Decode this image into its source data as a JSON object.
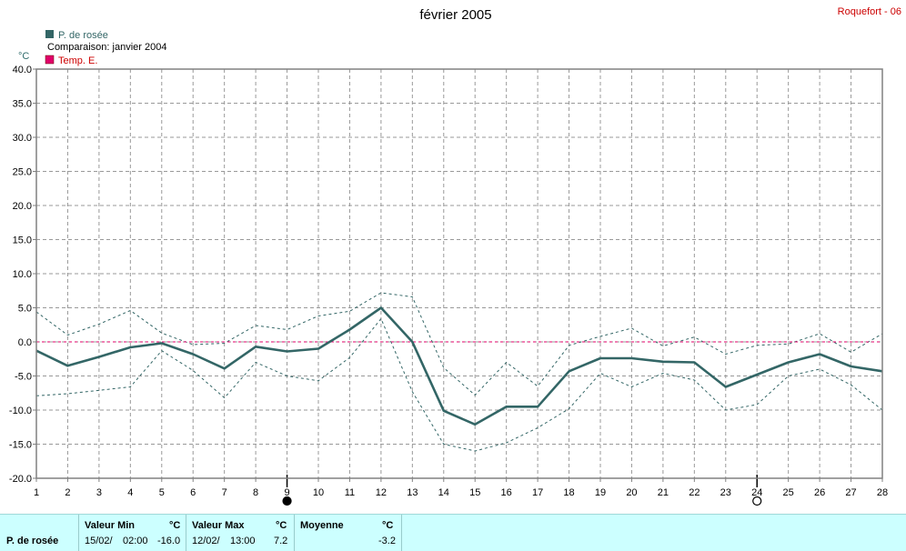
{
  "title": "février 2005",
  "station": "Roquefort - 06",
  "legend": [
    {
      "label": "P. de rosée",
      "color": "#336666"
    },
    {
      "label": "Comparaison: janvier 2004",
      "color": null
    },
    {
      "label": "Temp. E.",
      "color": "#e0006a"
    }
  ],
  "unit": "°C",
  "chart_data": {
    "type": "line",
    "ylim": [
      -20,
      40
    ],
    "yticks": [
      "40.0",
      "35.0",
      "30.0",
      "25.0",
      "20.0",
      "15.0",
      "10.0",
      "5.0",
      "0.0",
      "-5.0",
      "-10.0",
      "-15.0",
      "-20.0"
    ],
    "x": [
      1,
      2,
      3,
      4,
      5,
      6,
      7,
      8,
      9,
      10,
      11,
      12,
      13,
      14,
      15,
      16,
      17,
      18,
      19,
      20,
      21,
      22,
      23,
      24,
      25,
      26,
      27,
      28
    ],
    "xticks": [
      "1",
      "2",
      "3",
      "4",
      "5",
      "6",
      "7",
      "8",
      "9",
      "10",
      "11",
      "12",
      "13",
      "14",
      "15",
      "16",
      "17",
      "18",
      "19",
      "20",
      "21",
      "22",
      "23",
      "24",
      "25",
      "26",
      "27",
      "28"
    ],
    "series": [
      {
        "name": "P. de rosée",
        "color": "#336666",
        "values": [
          -1.3,
          -3.5,
          -2.2,
          -0.8,
          -0.2,
          -1.8,
          -3.9,
          -0.7,
          -1.4,
          -1.0,
          1.8,
          5.0,
          0.0,
          -10.1,
          -12.1,
          -9.5,
          -9.5,
          -4.3,
          -2.4,
          -2.4,
          -2.9,
          -3.0,
          -6.6,
          -4.8,
          -3.0,
          -1.8,
          -3.6,
          -4.3
        ]
      },
      {
        "name": "",
        "color": "#336666",
        "dashed": true,
        "values": [
          4.4,
          1.0,
          2.6,
          4.6,
          1.3,
          -0.4,
          -0.2,
          2.4,
          1.8,
          3.8,
          4.5,
          7.2,
          6.6,
          -3.8,
          -7.8,
          -3.0,
          -6.5,
          -0.5,
          0.8,
          2.0,
          -0.6,
          0.7,
          -1.8,
          -0.5,
          -0.3,
          1.2,
          -1.5,
          1.2
        ]
      },
      {
        "name": "",
        "color": "#336666",
        "dashed": true,
        "values": [
          -7.9,
          -7.6,
          -7.1,
          -6.6,
          -1.3,
          -4.2,
          -8.2,
          -3.0,
          -5.0,
          -5.7,
          -2.3,
          3.4,
          -7.3,
          -15.0,
          -16.0,
          -14.8,
          -12.6,
          -9.8,
          -4.6,
          -6.6,
          -4.6,
          -5.6,
          -10.0,
          -9.2,
          -5.0,
          -4.0,
          -6.3,
          -10.0
        ]
      },
      {
        "name": "Temp. E.",
        "color": "#e0006a",
        "dashed": true,
        "values": [
          0,
          0,
          0,
          0,
          0,
          0,
          0,
          0,
          0,
          0,
          0,
          0,
          0,
          0,
          0,
          0,
          0,
          0,
          0,
          0,
          0,
          0,
          0,
          0,
          0,
          0,
          0,
          0
        ]
      }
    ],
    "markers": [
      {
        "x": 9,
        "type": "new-moon"
      },
      {
        "x": 24,
        "type": "full-moon"
      }
    ]
  },
  "stats": {
    "row_label": "P. de rosée",
    "min_header": "Valeur Min",
    "min_unit": "°C",
    "min_date": "15/02/",
    "min_time": "02:00",
    "min_value": "-16.0",
    "max_header": "Valeur Max",
    "max_unit": "°C",
    "max_date": "12/02/",
    "max_time": "13:00",
    "max_value": "7.2",
    "avg_header": "Moyenne",
    "avg_unit": "°C",
    "avg_value": "-3.2"
  }
}
